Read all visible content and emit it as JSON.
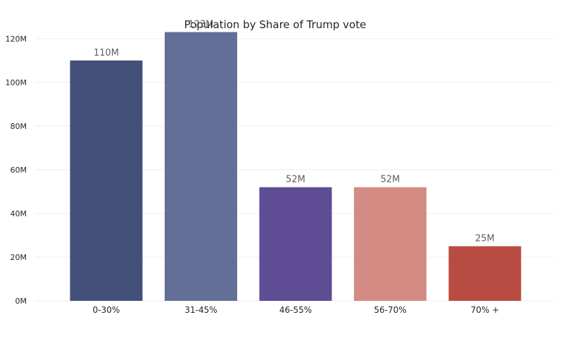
{
  "chart_data": {
    "type": "bar",
    "title": "Population by Share of Trump vote",
    "xlabel": "",
    "ylabel": "",
    "categories": [
      "0-30%",
      "31-45%",
      "46-55%",
      "56-70%",
      "70% +"
    ],
    "values": [
      110,
      123,
      52,
      52,
      25
    ],
    "data_labels": [
      "110M",
      "123M",
      "52M",
      "52M",
      "25M"
    ],
    "y_ticks": [
      0,
      20,
      40,
      60,
      80,
      100,
      120
    ],
    "y_tick_labels": [
      "0M",
      "20M",
      "40M",
      "60M",
      "80M",
      "100M",
      "120M"
    ],
    "ylim": [
      0,
      128
    ],
    "grid": true,
    "legend": "none",
    "colors": [
      "#435079",
      "#646f98",
      "#5e4d94",
      "#d48b84",
      "#b94c42"
    ]
  }
}
